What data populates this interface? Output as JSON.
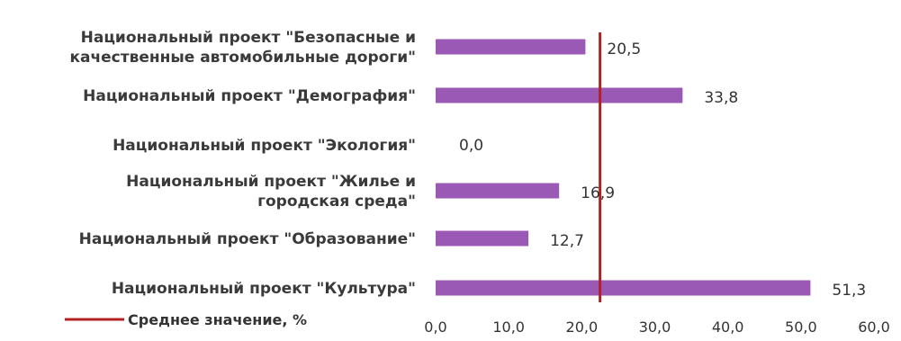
{
  "chart_data": {
    "type": "bar",
    "orientation": "horizontal",
    "categories": [
      [
        "Национальный проект \"Безопасные и",
        "качественные автомобильные дороги\""
      ],
      [
        "Национальный проект \"Демография\""
      ],
      [
        "Национальный проект \"Экология\""
      ],
      [
        "Национальный проект \"Жилье и",
        "городская среда\""
      ],
      [
        "Национальный проект \"Образование\""
      ],
      [
        "Национальный проект \"Культура\""
      ]
    ],
    "values": [
      20.5,
      33.8,
      0.0,
      16.9,
      12.7,
      51.3
    ],
    "value_labels": [
      "20,5",
      "33,8",
      "0,0",
      "16,9",
      "12,7",
      "51,3"
    ],
    "reference_line": {
      "value": 22.5,
      "name": "Среднее значение, %"
    },
    "xlim": [
      0,
      60
    ],
    "x_ticks": [
      "0,0",
      "10,0",
      "20,0",
      "30,0",
      "40,0",
      "50,0",
      "60,0"
    ],
    "grid": false,
    "legend": "bottom-left",
    "colors": {
      "bar": "#9b59b6",
      "reference": "#b22222"
    }
  }
}
